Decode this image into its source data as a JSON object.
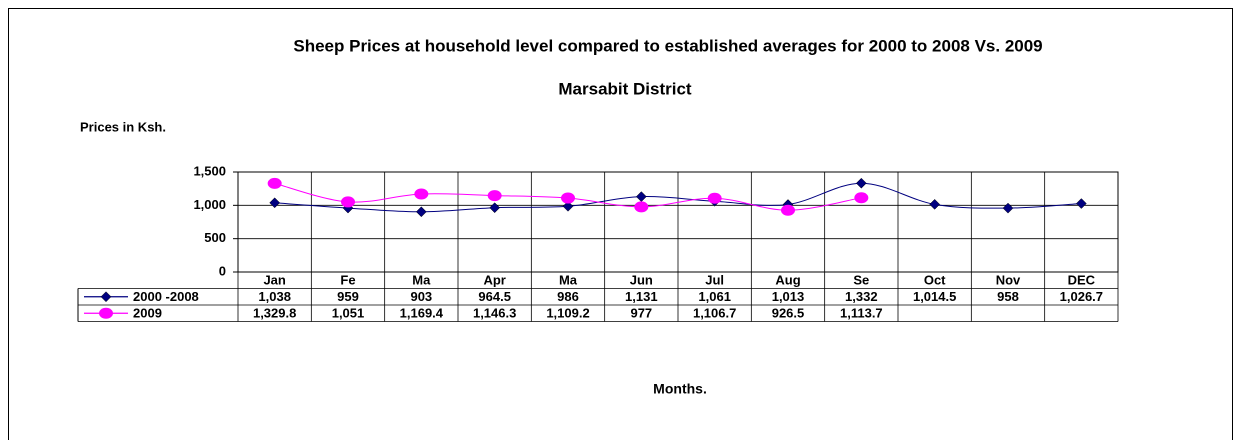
{
  "chart_data": {
    "type": "line",
    "title": "Sheep Prices at household level compared to established averages for 2000 to 2008 Vs. 2009",
    "subtitle": "Marsabit District",
    "y_label": "Prices in Ksh.",
    "x_label": "Months.",
    "categories": [
      "Jan",
      "Fe",
      "Ma",
      "Apr",
      "Ma",
      "Jun",
      "Jul",
      "Aug",
      "Se",
      "Oct",
      "Nov",
      "DEC"
    ],
    "series": [
      {
        "name": "2000 -2008",
        "color": "#000080",
        "marker": "diamond",
        "values": [
          1038,
          959,
          903,
          964.5,
          986,
          1131,
          1061,
          1013,
          1332,
          1014.5,
          958,
          1026.7
        ],
        "value_labels": [
          "1,038",
          "959",
          "903",
          "964.5",
          "986",
          "1,131",
          "1,061",
          "1,013",
          "1,332",
          "1,014.5",
          "958",
          "1,026.7"
        ]
      },
      {
        "name": "2009",
        "color": "#ff00ff",
        "marker": "circle",
        "values": [
          1329.8,
          1051,
          1169.4,
          1146.3,
          1109.2,
          977,
          1106.7,
          926.5,
          1113.7,
          null,
          null,
          null
        ],
        "value_labels": [
          "1,329.8",
          "1,051",
          "1,169.4",
          "1,146.3",
          "1,109.2",
          "977",
          "1,106.7",
          "926.5",
          "1,113.7",
          null,
          null,
          null
        ]
      }
    ],
    "ylim": [
      0,
      1500
    ],
    "yticks": [
      0,
      500,
      {
        "value": 1000,
        "label": "1,000"
      },
      {
        "value": 1500,
        "label": "1,500"
      }
    ],
    "grid": true
  }
}
